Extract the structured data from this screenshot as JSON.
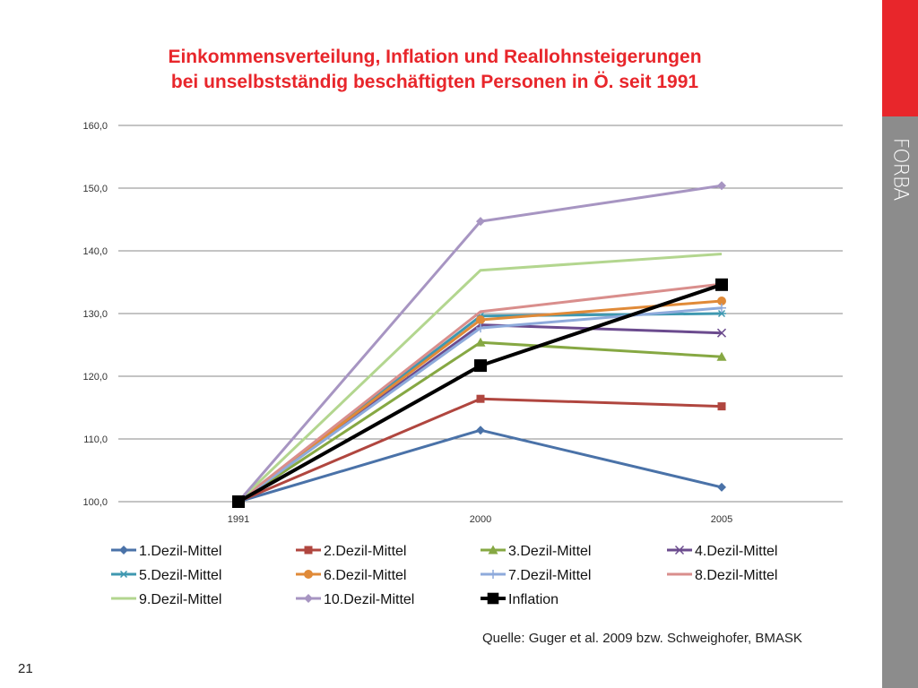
{
  "slide": {
    "title_line1": "Einkommensverteilung, Inflation und Reallohnsteigerungen",
    "title_line2": "bei unselbstständig beschäftigten Personen in Ö. seit 1991",
    "source": "Quelle: Guger et al. 2009 bzw. Schweighofer, BMASK",
    "page_number": "21",
    "logo_text": "FORBA",
    "colors": {
      "title": "#e8262b",
      "side_red": "#e8262b",
      "side_grey": "#8c8c8c"
    }
  },
  "chart_data": {
    "type": "line",
    "title": "",
    "xlabel": "",
    "ylabel": "",
    "categories": [
      "1991",
      "2000",
      "2005"
    ],
    "ylim": [
      100,
      160
    ],
    "y_ticks": [
      "100,0",
      "110,0",
      "120,0",
      "130,0",
      "140,0",
      "150,0",
      "160,0"
    ],
    "grid": true,
    "legend_position": "bottom",
    "series": [
      {
        "name": "1.Dezil-Mittel",
        "values": [
          100,
          111.4,
          102.3
        ],
        "color": "#4a72a8",
        "marker": "diamond"
      },
      {
        "name": "2.Dezil-Mittel",
        "values": [
          100,
          116.4,
          115.2
        ],
        "color": "#b0463f",
        "marker": "square"
      },
      {
        "name": "3.Dezil-Mittel",
        "values": [
          100,
          125.4,
          123.1
        ],
        "color": "#86a843",
        "marker": "triangle"
      },
      {
        "name": "4.Dezil-Mittel",
        "values": [
          100,
          128.2,
          126.9
        ],
        "color": "#6b4b8e",
        "marker": "x"
      },
      {
        "name": "5.Dezil-Mittel",
        "values": [
          100,
          129.6,
          130.0
        ],
        "color": "#3f98b0",
        "marker": "star"
      },
      {
        "name": "6.Dezil-Mittel",
        "values": [
          100,
          129.0,
          132.0
        ],
        "color": "#e08a38",
        "marker": "circle"
      },
      {
        "name": "7.Dezil-Mittel",
        "values": [
          100,
          127.7,
          130.9
        ],
        "color": "#8eaadb",
        "marker": "plus"
      },
      {
        "name": "8.Dezil-Mittel",
        "values": [
          100,
          130.3,
          134.7
        ],
        "color": "#d98e8c",
        "marker": "none"
      },
      {
        "name": "9.Dezil-Mittel",
        "values": [
          100,
          136.9,
          139.5
        ],
        "color": "#b3d68f",
        "marker": "none"
      },
      {
        "name": "10.Dezil-Mittel",
        "values": [
          100,
          144.7,
          150.4
        ],
        "color": "#a795c2",
        "marker": "diamond"
      },
      {
        "name": "Inflation",
        "values": [
          100,
          121.7,
          134.6
        ],
        "color": "#000000",
        "marker": "bigsquare"
      }
    ]
  }
}
